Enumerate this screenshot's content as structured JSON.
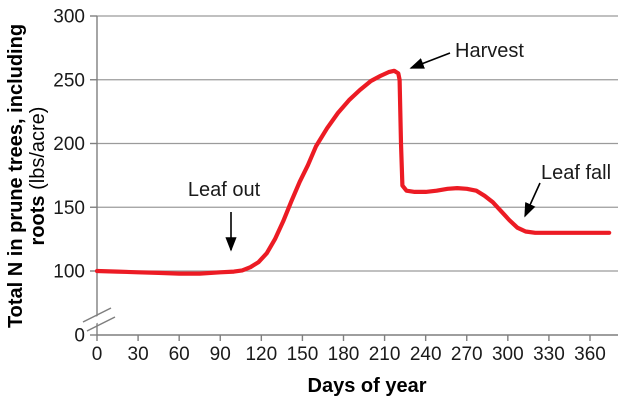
{
  "chart_data": {
    "type": "line",
    "title": "",
    "xlabel": "Days of year",
    "ylabel_lines": [
      {
        "bold": "Total N in prune trees, including",
        "regular": ""
      },
      {
        "bold": "roots",
        "regular": " (lbs/acre)"
      }
    ],
    "ylabel_full": "Total N in prune trees, including roots (lbs/acre)",
    "x_ticks": [
      0,
      30,
      60,
      90,
      120,
      150,
      180,
      210,
      240,
      270,
      300,
      330,
      360
    ],
    "y_ticks": [
      300,
      250,
      200,
      150,
      100,
      0
    ],
    "grid_values": [
      100,
      150,
      200,
      250,
      300
    ],
    "xlim": [
      0,
      381
    ],
    "ylim": [
      0,
      300
    ],
    "y_axis_break": {
      "present": true,
      "between": [
        0,
        100
      ]
    },
    "grid_on": true,
    "legend": "none",
    "colors": {
      "line": "#EC1B24",
      "grid": "#9b9b9b",
      "axis": "#7f7f7f",
      "text": "#1a1a1a",
      "annotation_arrow": "#000000",
      "background": "#ffffff"
    },
    "series": [
      {
        "name": "Total N in prune trees including roots (lbs/acre)",
        "color": "#EC1B24",
        "points": [
          [
            0,
            100
          ],
          [
            15,
            99.5
          ],
          [
            30,
            99
          ],
          [
            45,
            98.5
          ],
          [
            60,
            98
          ],
          [
            75,
            98
          ],
          [
            90,
            99
          ],
          [
            100,
            99.5
          ],
          [
            106,
            100.5
          ],
          [
            112,
            103
          ],
          [
            118,
            107
          ],
          [
            124,
            114
          ],
          [
            130,
            125
          ],
          [
            136,
            139
          ],
          [
            142,
            155
          ],
          [
            148,
            170
          ],
          [
            154,
            183
          ],
          [
            160,
            198
          ],
          [
            168,
            212
          ],
          [
            176,
            224
          ],
          [
            184,
            234
          ],
          [
            192,
            242
          ],
          [
            200,
            249
          ],
          [
            207,
            253
          ],
          [
            213,
            256
          ],
          [
            217,
            257
          ],
          [
            220,
            255
          ],
          [
            221,
            250
          ],
          [
            222,
            200
          ],
          [
            223,
            167
          ],
          [
            226,
            163
          ],
          [
            232,
            162
          ],
          [
            240,
            162
          ],
          [
            248,
            163
          ],
          [
            256,
            164.5
          ],
          [
            263,
            165
          ],
          [
            270,
            164.5
          ],
          [
            277,
            163
          ],
          [
            283,
            159
          ],
          [
            289,
            154
          ],
          [
            295,
            147
          ],
          [
            301,
            140
          ],
          [
            307,
            134
          ],
          [
            313,
            131
          ],
          [
            320,
            130
          ],
          [
            340,
            130
          ],
          [
            360,
            130
          ],
          [
            374,
            130
          ]
        ]
      }
    ],
    "annotations": [
      {
        "id": "leaf-out",
        "label": "Leaf out",
        "points_at_day": 98,
        "points_at_value": 103
      },
      {
        "id": "harvest",
        "label": "Harvest",
        "points_at_day": 217,
        "points_at_value": 257
      },
      {
        "id": "leaf-fall",
        "label": "Leaf fall",
        "points_at_day": 310,
        "points_at_value": 136
      }
    ],
    "key_events": {
      "dormant_level_lbs_per_acre": 100,
      "peak_level_lbs_per_acre": 257,
      "post_harvest_level_lbs_per_acre": 162,
      "post_leaf_fall_level_lbs_per_acre": 130
    }
  }
}
